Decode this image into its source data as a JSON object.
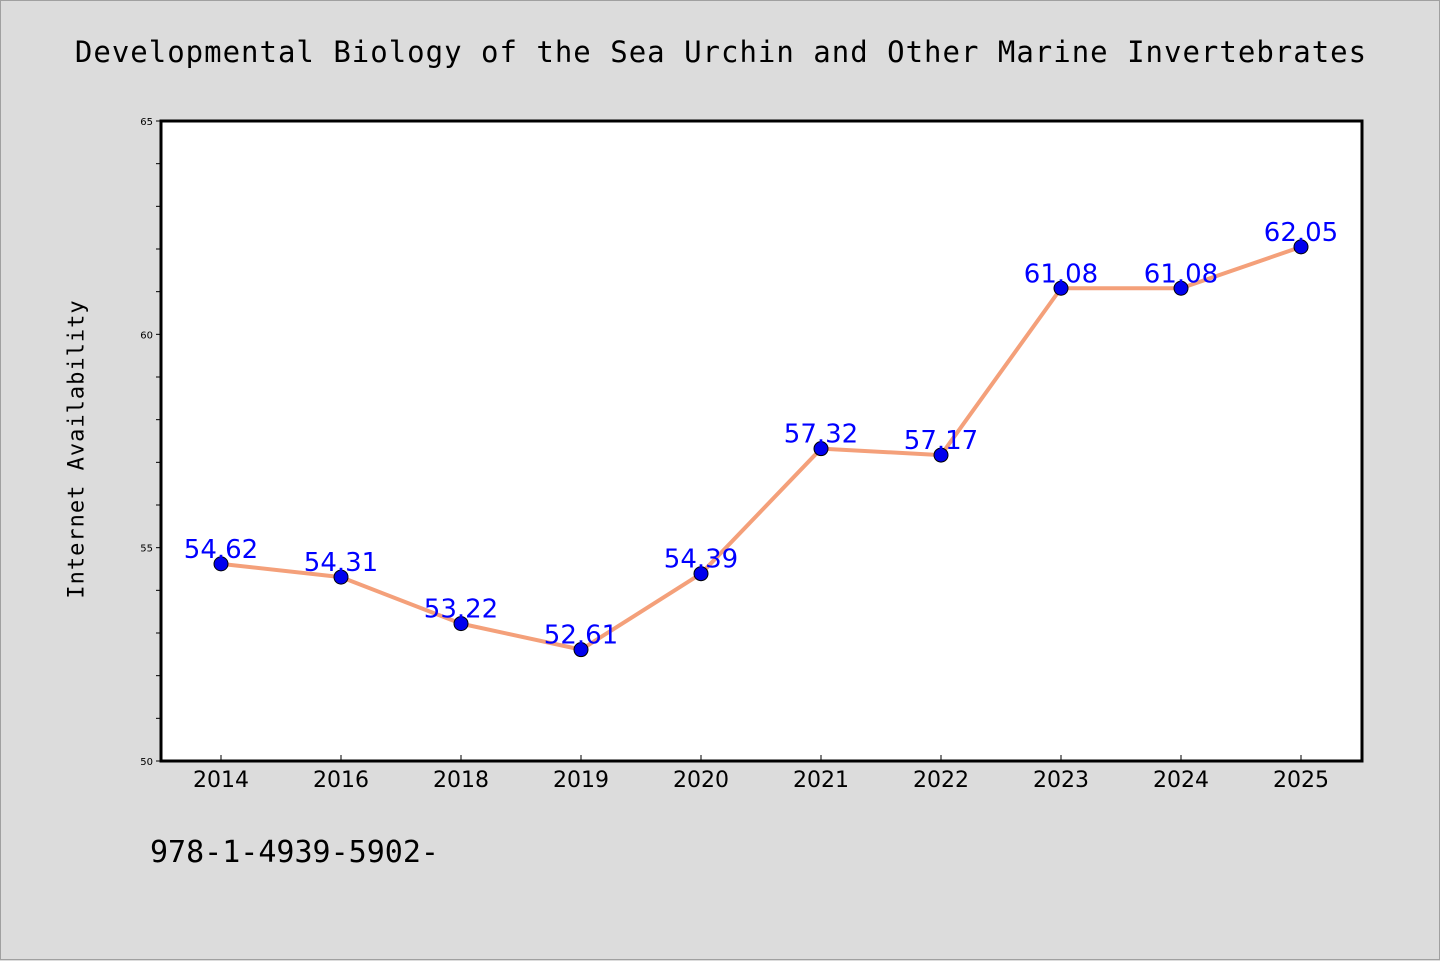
{
  "chart_data": {
    "type": "line",
    "title": "Developmental Biology of the Sea Urchin and Other Marine Invertebrates",
    "xlabel": "",
    "ylabel": "Internet Availability",
    "categories": [
      "2014",
      "2016",
      "2018",
      "2019",
      "2020",
      "2021",
      "2022",
      "2023",
      "2024",
      "2025"
    ],
    "series": [
      {
        "values": [
          54.62,
          54.31,
          53.22,
          52.61,
          54.39,
          57.32,
          57.17,
          61.08,
          61.08,
          62.05
        ],
        "labels": [
          "54.62",
          "54.31",
          "53.22",
          "52.61",
          "54.39",
          "57.32",
          "57.17",
          "61.08",
          "61.08",
          "62.05"
        ],
        "line_color": "#f4a07a",
        "marker_color": "#0000ee",
        "label_color": "#0000ff"
      }
    ],
    "ylim": [
      50,
      65
    ],
    "yticks": [
      "50",
      "55",
      "60",
      "65"
    ],
    "grid": false,
    "legend": "none"
  },
  "footer_text": "978-1-4939-5902-",
  "colors": {
    "background": "#dcdcdc",
    "plot_background": "#ffffff"
  }
}
